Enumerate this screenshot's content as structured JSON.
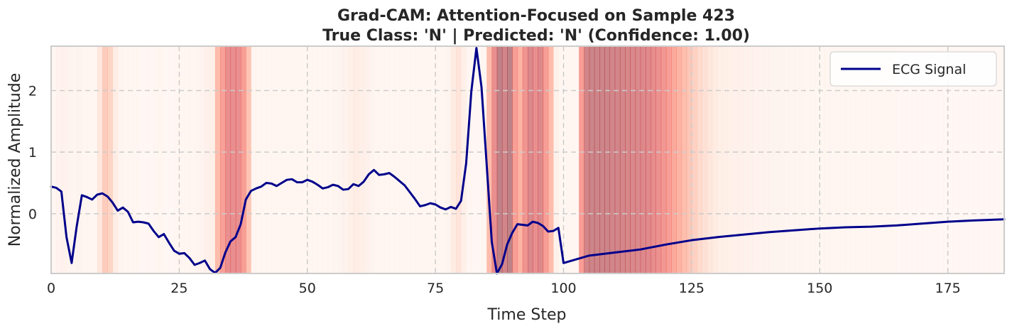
{
  "chart_data": {
    "type": "line",
    "title_line1": "Grad-CAM: Attention-Focused on Sample 423",
    "title_line2": "True Class: 'N' | Predicted: 'N' (Confidence: 1.00)",
    "xlabel": "Time Step",
    "ylabel": "Normalized Amplitude",
    "xlim": [
      0,
      186
    ],
    "ylim": [
      -0.97,
      2.72
    ],
    "xticks": [
      0,
      25,
      50,
      75,
      100,
      125,
      150,
      175
    ],
    "yticks": [
      0,
      1,
      2
    ],
    "grid": true,
    "legend_position": "top-right",
    "series": [
      {
        "name": "ECG Signal",
        "color": "#00008b",
        "x": [
          0,
          1,
          2,
          3,
          4,
          5,
          6,
          7,
          8,
          9,
          10,
          11,
          12,
          13,
          14,
          15,
          16,
          17,
          18,
          19,
          20,
          21,
          22,
          23,
          24,
          25,
          26,
          27,
          28,
          29,
          30,
          31,
          32,
          33,
          34,
          35,
          36,
          37,
          38,
          39,
          40,
          41,
          42,
          43,
          44,
          45,
          46,
          47,
          48,
          49,
          50,
          51,
          52,
          53,
          54,
          55,
          56,
          57,
          58,
          59,
          60,
          61,
          62,
          63,
          64,
          65,
          66,
          67,
          68,
          69,
          70,
          71,
          72,
          73,
          74,
          75,
          76,
          77,
          78,
          79,
          80,
          81,
          82,
          83,
          84,
          85,
          86,
          87,
          88,
          89,
          90,
          91,
          92,
          93,
          94,
          95,
          96,
          97,
          98,
          99,
          100,
          105,
          110,
          115,
          120,
          125,
          130,
          135,
          140,
          145,
          150,
          155,
          160,
          165,
          170,
          175,
          180,
          186
        ],
        "y": [
          0.44,
          0.42,
          0.36,
          -0.38,
          -0.8,
          -0.2,
          0.3,
          0.27,
          0.23,
          0.31,
          0.33,
          0.28,
          0.18,
          0.05,
          0.1,
          0.03,
          -0.14,
          -0.13,
          -0.14,
          -0.16,
          -0.28,
          -0.38,
          -0.33,
          -0.47,
          -0.6,
          -0.65,
          -0.64,
          -0.72,
          -0.83,
          -0.8,
          -0.76,
          -0.9,
          -0.96,
          -0.88,
          -0.63,
          -0.45,
          -0.38,
          -0.17,
          0.23,
          0.37,
          0.41,
          0.44,
          0.5,
          0.49,
          0.45,
          0.5,
          0.55,
          0.56,
          0.51,
          0.51,
          0.55,
          0.52,
          0.47,
          0.41,
          0.43,
          0.47,
          0.45,
          0.39,
          0.4,
          0.48,
          0.45,
          0.52,
          0.64,
          0.71,
          0.63,
          0.64,
          0.66,
          0.6,
          0.53,
          0.46,
          0.35,
          0.24,
          0.12,
          0.14,
          0.17,
          0.15,
          0.1,
          0.07,
          0.11,
          0.08,
          0.21,
          0.82,
          1.98,
          2.69,
          2.05,
          0.8,
          -0.46,
          -0.97,
          -0.82,
          -0.5,
          -0.31,
          -0.17,
          -0.18,
          -0.19,
          -0.13,
          -0.15,
          -0.2,
          -0.29,
          -0.28,
          -0.23,
          -0.8,
          -0.68,
          -0.63,
          -0.58,
          -0.5,
          -0.43,
          -0.38,
          -0.34,
          -0.3,
          -0.27,
          -0.24,
          -0.22,
          -0.21,
          -0.19,
          -0.16,
          -0.13,
          -0.11,
          -0.09
        ]
      }
    ],
    "heatmap_background": {
      "colormap": "Reds",
      "alpha": 0.5,
      "bin_width": 1,
      "intensity": [
        0.05,
        0.08,
        0.09,
        0.07,
        0.06,
        0.07,
        0.05,
        0.04,
        0.04,
        0.18,
        0.35,
        0.3,
        0.14,
        0.06,
        0.05,
        0.04,
        0.04,
        0.03,
        0.03,
        0.03,
        0.04,
        0.04,
        0.03,
        0.03,
        0.04,
        0.05,
        0.05,
        0.05,
        0.06,
        0.08,
        0.1,
        0.12,
        0.45,
        0.6,
        0.72,
        0.72,
        0.72,
        0.62,
        0.4,
        0.06,
        0.05,
        0.04,
        0.04,
        0.04,
        0.04,
        0.04,
        0.04,
        0.04,
        0.04,
        0.05,
        0.05,
        0.05,
        0.04,
        0.04,
        0.05,
        0.06,
        0.07,
        0.09,
        0.12,
        0.14,
        0.12,
        0.1,
        0.07,
        0.05,
        0.04,
        0.04,
        0.04,
        0.04,
        0.04,
        0.04,
        0.04,
        0.04,
        0.04,
        0.04,
        0.04,
        0.04,
        0.05,
        0.07,
        0.15,
        0.2,
        0.12,
        0.04,
        0.03,
        0.03,
        0.04,
        0.45,
        0.72,
        0.95,
        0.88,
        0.96,
        0.62,
        0.5,
        0.68,
        0.82,
        0.72,
        0.8,
        0.62,
        0.45,
        0.1,
        0.05,
        0.04,
        0.04,
        0.04,
        0.62,
        0.88,
        0.9,
        0.9,
        0.9,
        0.9,
        0.88,
        0.88,
        0.86,
        0.85,
        0.83,
        0.82,
        0.8,
        0.78,
        0.74,
        0.7,
        0.66,
        0.62,
        0.56,
        0.5,
        0.44,
        0.38,
        0.32,
        0.26,
        0.22,
        0.18,
        0.15,
        0.13,
        0.12,
        0.11,
        0.1,
        0.1,
        0.09,
        0.09,
        0.08,
        0.08,
        0.08,
        0.07,
        0.07,
        0.07,
        0.06,
        0.06,
        0.06,
        0.06,
        0.05,
        0.05,
        0.05,
        0.05,
        0.05,
        0.04,
        0.04,
        0.04,
        0.04,
        0.04,
        0.04,
        0.04,
        0.04,
        0.04,
        0.04,
        0.04,
        0.04,
        0.04,
        0.03,
        0.03,
        0.03,
        0.03,
        0.03,
        0.03,
        0.03,
        0.03,
        0.03,
        0.03,
        0.03,
        0.03,
        0.03,
        0.03,
        0.03,
        0.03,
        0.03,
        0.03,
        0.03,
        0.03,
        0.03,
        0.03,
        0.03,
        0.03,
        0.03,
        0.03,
        0.03,
        0.03,
        0.03,
        0.03,
        0.03,
        0.03
      ]
    }
  }
}
